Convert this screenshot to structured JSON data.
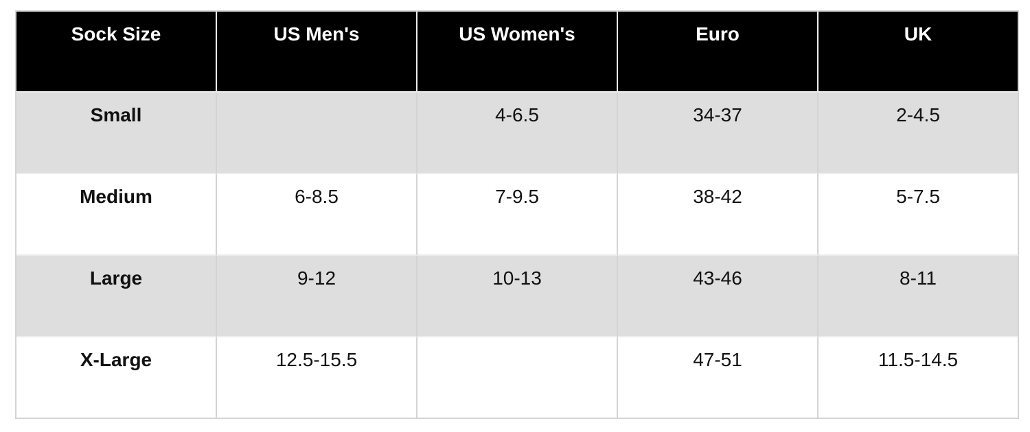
{
  "chart_data": {
    "type": "table",
    "columns": [
      "Sock Size",
      "US Men's",
      "US Women's",
      "Euro",
      "UK"
    ],
    "rows": [
      [
        "Small",
        "",
        "4-6.5",
        "34-37",
        "2-4.5"
      ],
      [
        "Medium",
        "6-8.5",
        "7-9.5",
        "38-42",
        "5-7.5"
      ],
      [
        "Large",
        "9-12",
        "10-13",
        "43-46",
        "8-11"
      ],
      [
        "X-Large",
        "12.5-15.5",
        "",
        "47-51",
        "11.5-14.5"
      ]
    ],
    "empty_cells": [
      [
        0,
        1
      ],
      [
        3,
        2
      ]
    ],
    "layout_hints": {
      "striped_rows": [
        0,
        2
      ],
      "header_position": "top",
      "text_align": "center",
      "first_column_bold": true,
      "grid": true
    },
    "style": {
      "header_bg": "#000000",
      "header_text": "#ffffff",
      "stripe": "#dedede",
      "row_bg": "#ffffff",
      "border": "#d4d4d4",
      "border_light": "#ececec",
      "text": "#111111"
    }
  }
}
